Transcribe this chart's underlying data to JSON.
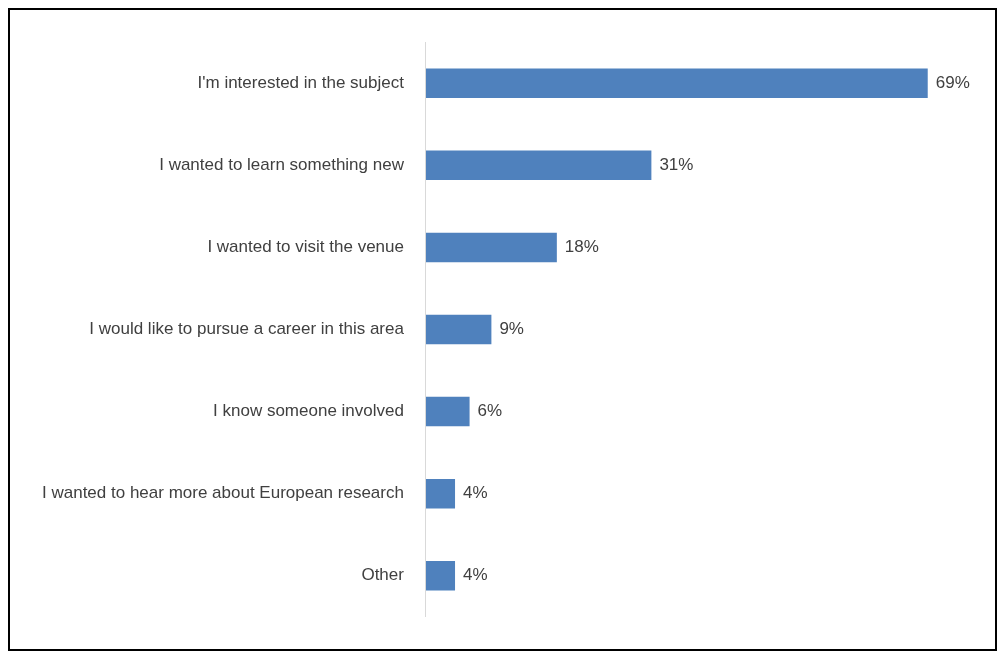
{
  "chart_data": {
    "type": "bar",
    "orientation": "horizontal",
    "categories": [
      "I'm interested in the subject",
      "I wanted to learn something new",
      "I wanted to visit the venue",
      "I would like to pursue a career in this area",
      "I know someone involved",
      "I wanted to hear more about European research",
      "Other"
    ],
    "values": [
      69,
      31,
      18,
      9,
      6,
      4,
      4
    ],
    "color": "#4f81bd",
    "data_labels": true,
    "value_labels": [
      "69%",
      "31%",
      "18%",
      "9%",
      "6%",
      "4%",
      "4%"
    ],
    "legend": false
  }
}
